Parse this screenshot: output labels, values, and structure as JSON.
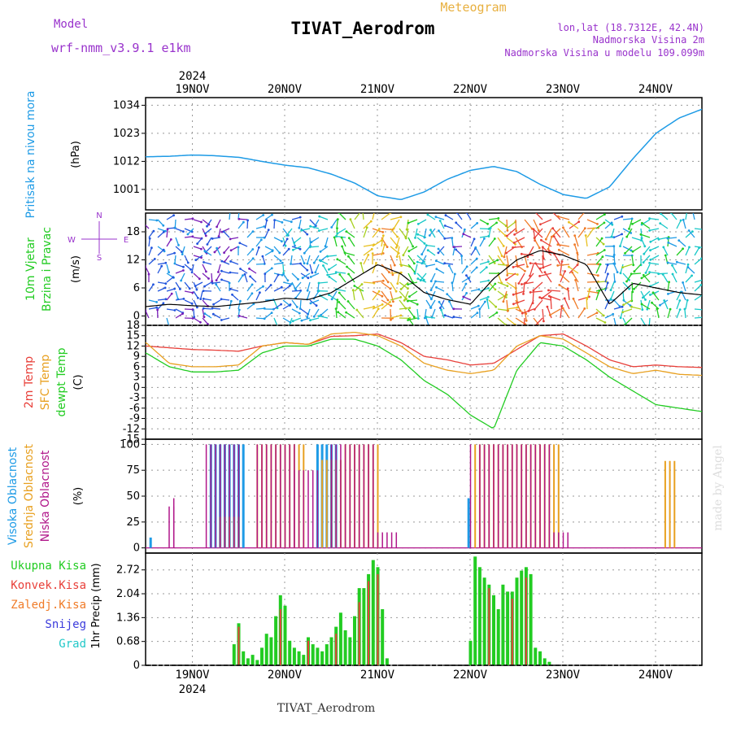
{
  "header": {
    "model_label": "Model",
    "model_name": "wrf-nmm_v3.9.1  e1km",
    "meteogram_label": "Meteogram",
    "title": "TIVAT_Aerodrom",
    "lonlat": "lon,lat (18.7312E, 42.4N)",
    "elevation": "Nadmorska Visina 2m",
    "model_elevation": "Nadmorska Visina u modelu 109.099m",
    "footer_station": "TIVAT_Aerodrom",
    "watermark": "made by Angel"
  },
  "colors": {
    "pressure": "#1e9be6",
    "temp2m": "#e8403a",
    "sfc_temp": "#e8a020",
    "dewpt": "#22cc22",
    "cloud_high": "#1e9be6",
    "cloud_mid": "#e8a020",
    "cloud_low": "#b0168a",
    "precip_total": "#22cc22",
    "precip_conv": "#e8403a",
    "precip_frz": "#f07b28",
    "precip_snow": "#3b3bdc",
    "precip_hail": "#22c8c8",
    "wind_label": "#9933cc"
  },
  "chart_data": [
    {
      "type": "line",
      "panel": "pressure",
      "ylabel_lines": [
        "Pritisak na nivou mora"
      ],
      "unit": "(hPa)",
      "ylim": [
        993,
        1037
      ],
      "yticks": [
        1001,
        1012,
        1023,
        1034
      ],
      "x_unit": "day offset from 19NOV 00UTC",
      "series": [
        {
          "color_key": "pressure",
          "x": [
            -0.5,
            -0.25,
            0,
            0.25,
            0.5,
            0.75,
            1.0,
            1.25,
            1.5,
            1.75,
            2.0,
            2.25,
            2.5,
            2.75,
            3.0,
            3.25,
            3.5,
            3.75,
            4.0,
            4.25,
            4.5,
            4.75,
            5.0,
            5.25,
            5.5,
            5.75,
            6.0,
            6.25
          ],
          "y": [
            1013.8,
            1014,
            1014.5,
            1014.2,
            1013.6,
            1012,
            1010.5,
            1009.5,
            1007,
            1003.5,
            998.5,
            997,
            1000,
            1005,
            1008.5,
            1010,
            1008,
            1003,
            999,
            997.5,
            1002,
            1013,
            1023,
            1029,
            1032.5,
            1033.8,
            1034.2,
            1033.2
          ]
        }
      ]
    },
    {
      "type": "line",
      "panel": "wind",
      "ylabel_lines": [
        "10m Vjetar",
        "Brzina i Pravac"
      ],
      "unit": "(m/s)",
      "ylim": [
        -2,
        22
      ],
      "yticks": [
        0,
        6,
        12,
        18
      ],
      "compass": {
        "n": "N",
        "s": "S",
        "e": "E",
        "w": "W"
      },
      "series": [
        {
          "name": "speed",
          "x": [
            -0.5,
            -0.25,
            0,
            0.25,
            0.5,
            0.75,
            1.0,
            1.25,
            1.5,
            1.75,
            2.0,
            2.25,
            2.5,
            2.75,
            3.0,
            3.25,
            3.5,
            3.75,
            4.0,
            4.25,
            4.5,
            4.75,
            5.0,
            5.25,
            5.5,
            5.75,
            6.0,
            6.25
          ],
          "y": [
            2,
            2.5,
            2.2,
            2,
            2.5,
            3,
            3.8,
            3.5,
            5,
            8,
            11,
            9,
            5,
            3.5,
            2.5,
            8,
            12,
            14,
            13,
            11,
            2.5,
            7,
            6,
            5,
            4.5,
            4,
            4.5,
            2.5
          ]
        }
      ]
    },
    {
      "type": "line",
      "panel": "temperature",
      "ylabel_lines": [
        "2m Temp",
        "SFC Temp",
        "dewpt Temp"
      ],
      "unit": "(C)",
      "ylim": [
        -15,
        18
      ],
      "yticks": [
        -15,
        -12,
        -9,
        -6,
        -3,
        0,
        3,
        6,
        9,
        12,
        15,
        18
      ],
      "series": [
        {
          "name": "2m Temp",
          "color_key": "temp2m",
          "x": [
            -0.5,
            -0.25,
            0,
            0.25,
            0.5,
            0.75,
            1.0,
            1.25,
            1.5,
            1.75,
            2.0,
            2.25,
            2.5,
            2.75,
            3.0,
            3.25,
            3.5,
            3.75,
            4.0,
            4.25,
            4.5,
            4.75,
            5.0,
            5.25,
            5.5,
            5.75,
            6.0,
            6.25
          ],
          "y": [
            12,
            11.5,
            11,
            10.8,
            10.5,
            12,
            13,
            12.5,
            14.8,
            15,
            15.5,
            13,
            9,
            8,
            6.5,
            7,
            11,
            15,
            15.5,
            12,
            8,
            6,
            6.5,
            6,
            5.8,
            6,
            6.3,
            11
          ]
        },
        {
          "name": "SFC Temp",
          "color_key": "sfc_temp",
          "x": [
            -0.5,
            -0.25,
            0,
            0.25,
            0.5,
            0.75,
            1.0,
            1.25,
            1.5,
            1.75,
            2.0,
            2.25,
            2.5,
            2.75,
            3.0,
            3.25,
            3.5,
            3.75,
            4.0,
            4.25,
            4.5,
            4.75,
            5.0,
            5.25,
            5.5,
            5.75,
            6.0,
            6.25
          ],
          "y": [
            13,
            7,
            6,
            6,
            6.5,
            12,
            13,
            12.5,
            15.5,
            16,
            15,
            12,
            7,
            5,
            4,
            5,
            12,
            15,
            14,
            10,
            6,
            4,
            5,
            3.8,
            3.5,
            3.5,
            3.5,
            13
          ]
        },
        {
          "name": "dewpt Temp",
          "color_key": "dewpt",
          "x": [
            -0.5,
            -0.25,
            0,
            0.25,
            0.5,
            0.75,
            1.0,
            1.25,
            1.5,
            1.75,
            2.0,
            2.25,
            2.5,
            2.75,
            3.0,
            3.25,
            3.5,
            3.75,
            4.0,
            4.25,
            4.5,
            4.75,
            5.0,
            5.25,
            5.5,
            5.75,
            6.0,
            6.25
          ],
          "y": [
            10,
            6,
            4.5,
            4.5,
            5,
            10,
            12,
            12,
            14,
            14,
            12,
            8,
            2,
            -2,
            -8,
            -12,
            5,
            13,
            12,
            8,
            3,
            -1,
            -5,
            -6,
            -7,
            -9,
            -9.5,
            2.5
          ]
        }
      ]
    },
    {
      "type": "bar",
      "panel": "cloud",
      "ylabel_lines": [
        "Visoka Oblacnost",
        "Srednja Oblacnost",
        "Niska Oblacnost"
      ],
      "unit": "(%)",
      "ylim": [
        -5,
        105
      ],
      "yticks": [
        0,
        25,
        50,
        75,
        100
      ],
      "series": [
        {
          "name": "Visoka Oblacnost",
          "color_key": "cloud_high",
          "ranges": [
            [
              -0.45,
              -0.42,
              10
            ],
            [
              0.2,
              0.55,
              100
            ],
            [
              1.35,
              1.55,
              100
            ],
            [
              2.98,
              3.02,
              48
            ],
            [
              3.02,
              3.05,
              0
            ]
          ]
        },
        {
          "name": "Srednja Oblacnost",
          "color_key": "cloud_mid",
          "ranges": [
            [
              0.3,
              0.5,
              30
            ],
            [
              0.7,
              1.2,
              100
            ],
            [
              1.4,
              1.6,
              85
            ],
            [
              1.65,
              2.0,
              100
            ],
            [
              3.05,
              3.95,
              100
            ],
            [
              5.1,
              5.22,
              84
            ]
          ]
        },
        {
          "name": "Niska Oblacnost",
          "color_key": "cloud_low",
          "ranges": [
            [
              -0.25,
              -0.2,
              40
            ],
            [
              -0.2,
              -0.18,
              48
            ],
            [
              0.15,
              0.5,
              100
            ],
            [
              0.7,
              1.1,
              100
            ],
            [
              1.1,
              1.35,
              75
            ],
            [
              1.5,
              1.95,
              100
            ],
            [
              2.0,
              2.2,
              15
            ],
            [
              3.0,
              3.02,
              100
            ],
            [
              3.1,
              3.85,
              100
            ],
            [
              3.9,
              4.05,
              15
            ]
          ]
        }
      ]
    },
    {
      "type": "bar",
      "panel": "precip",
      "ylabel_lines": [
        "1hr Precip (mm)"
      ],
      "unit": "(mm)",
      "ylim": [
        0,
        3.2
      ],
      "yticks": [
        0,
        0.68,
        1.36,
        2.04,
        2.72
      ],
      "legend": [
        "Ukupna Kisa",
        "Konvek.Kisa",
        "Zaledj.Kisa",
        "Snijeg",
        "Grad"
      ],
      "series": [
        {
          "name": "Ukupna Kisa",
          "color_key": "precip_total",
          "x": [
            0.45,
            0.5,
            0.55,
            0.6,
            0.65,
            0.7,
            0.75,
            0.8,
            0.85,
            0.9,
            0.95,
            1.0,
            1.05,
            1.1,
            1.15,
            1.2,
            1.25,
            1.3,
            1.35,
            1.4,
            1.45,
            1.5,
            1.55,
            1.6,
            1.65,
            1.7,
            1.75,
            1.8,
            1.85,
            1.9,
            1.95,
            2.0,
            2.05,
            2.1,
            3.0,
            3.05,
            3.1,
            3.15,
            3.2,
            3.25,
            3.3,
            3.35,
            3.4,
            3.45,
            3.5,
            3.55,
            3.6,
            3.65,
            3.7,
            3.75,
            3.8,
            3.85
          ],
          "y": [
            0.6,
            1.2,
            0.4,
            0.2,
            0.3,
            0.15,
            0.5,
            0.9,
            0.8,
            1.4,
            2.0,
            1.7,
            0.7,
            0.5,
            0.4,
            0.3,
            0.8,
            0.6,
            0.5,
            0.4,
            0.6,
            0.8,
            1.1,
            1.5,
            1.0,
            0.8,
            1.4,
            2.2,
            2.2,
            2.6,
            3.0,
            2.8,
            1.6,
            0.2,
            0.7,
            3.1,
            2.8,
            2.5,
            2.3,
            2.0,
            1.6,
            2.3,
            2.1,
            2.1,
            2.5,
            2.7,
            2.8,
            2.6,
            0.5,
            0.4,
            0.2,
            0.1
          ]
        },
        {
          "name": "Konvek.Kisa",
          "color_key": "precip_conv",
          "x": [
            0.5,
            0.95,
            1.25,
            1.55,
            1.8,
            1.9,
            2.0,
            3.2,
            3.45,
            3.6
          ],
          "y": [
            1.1,
            1.6,
            0.7,
            0.9,
            1.8,
            2.4,
            2.6,
            2.2,
            1.9,
            2.5
          ]
        }
      ]
    }
  ],
  "x_axis": {
    "year_label": "2024",
    "day_labels": [
      "19NOV",
      "20NOV",
      "21NOV",
      "22NOV",
      "23NOV",
      "24NOV"
    ],
    "range": [
      -0.5,
      6.37
    ]
  }
}
